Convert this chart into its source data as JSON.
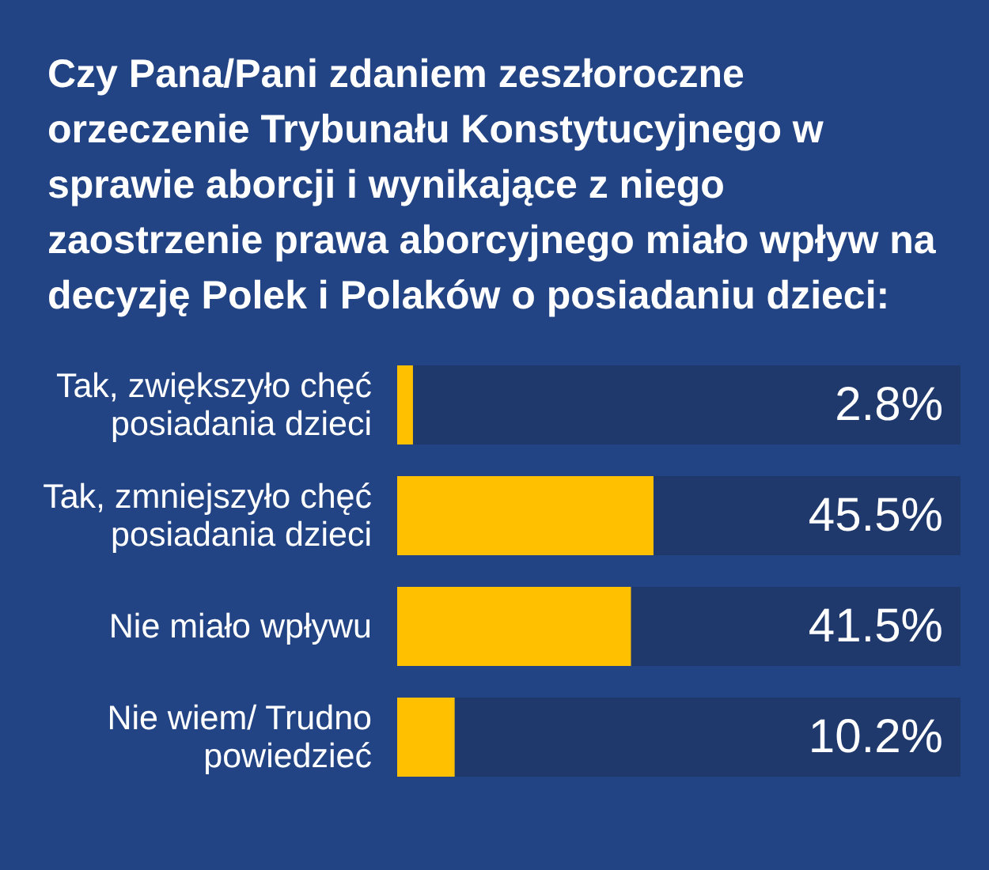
{
  "chart_data": {
    "type": "bar",
    "orientation": "horizontal",
    "title": "Czy Pana/Pani zdaniem zeszłoroczne orzeczenie Trybunału Konstytucyjnego w sprawie aborcji i wynikające z niego zaostrzenie prawa aborcyjnego miało wpływ na decyzję Polek i Polaków o posiadaniu dzieci:",
    "categories": [
      "Tak, zwiększyło chęć posiadania dzieci",
      "Tak, zmniejszyło chęć posiadania dzieci",
      "Nie miało wpływu",
      "Nie wiem/ Trudno powiedzieć"
    ],
    "values": [
      2.8,
      45.5,
      41.5,
      10.2
    ],
    "value_labels": [
      "2.8%",
      "45.5%",
      "41.5%",
      "10.2%"
    ],
    "color": "#ffc000",
    "xlim": [
      0,
      100
    ],
    "tick_labels": "y"
  }
}
